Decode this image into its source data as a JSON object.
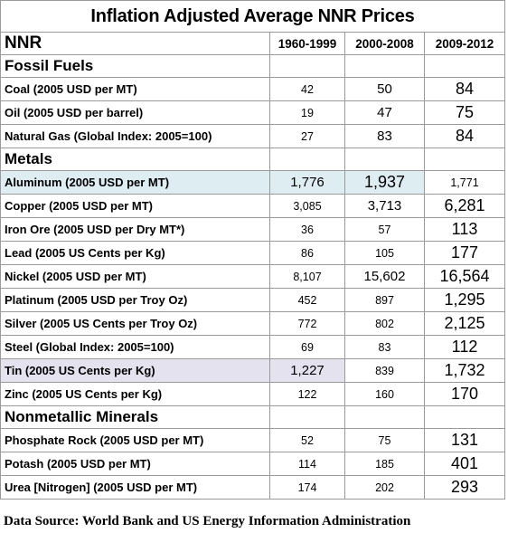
{
  "title": "Inflation Adjusted Average NNR Prices",
  "header": {
    "label": "NNR",
    "periods": [
      "1960-1999",
      "2000-2008",
      "2009-2012"
    ]
  },
  "sections": [
    {
      "name": "Fossil Fuels",
      "rows": [
        {
          "label": "Coal (2005 USD per MT)",
          "values": [
            "42",
            "50",
            "84"
          ]
        },
        {
          "label": "Oil (2005 USD per barrel)",
          "values": [
            "19",
            "47",
            "75"
          ]
        },
        {
          "label": "Natural Gas (Global Index: 2005=100)",
          "values": [
            "27",
            "83",
            "84"
          ]
        }
      ]
    },
    {
      "name": "Metals",
      "rows": [
        {
          "label": "Aluminum (2005 USD per MT)",
          "values": [
            "1,776",
            "1,937",
            "1,771"
          ]
        },
        {
          "label": "Copper (2005 USD per MT)",
          "values": [
            "3,085",
            "3,713",
            "6,281"
          ]
        },
        {
          "label": "Iron Ore (2005 USD per Dry MT*)",
          "values": [
            "36",
            "57",
            "113"
          ]
        },
        {
          "label": "Lead (2005 US Cents per Kg)",
          "values": [
            "86",
            "105",
            "177"
          ]
        },
        {
          "label": "Nickel (2005 USD per MT)",
          "values": [
            "8,107",
            "15,602",
            "16,564"
          ]
        },
        {
          "label": "Platinum (2005 USD per Troy Oz)",
          "values": [
            "452",
            "897",
            "1,295"
          ]
        },
        {
          "label": "Silver (2005 US Cents per Troy Oz)",
          "values": [
            "772",
            "802",
            "2,125"
          ]
        },
        {
          "label": "Steel (Global Index: 2005=100)",
          "values": [
            "69",
            "83",
            "112"
          ]
        },
        {
          "label": "Tin (2005 US Cents per Kg)",
          "values": [
            "1,227",
            "839",
            "1,732"
          ]
        },
        {
          "label": "Zinc (2005 US Cents per Kg)",
          "values": [
            "122",
            "160",
            "170"
          ]
        }
      ]
    },
    {
      "name": "Nonmetallic Minerals",
      "rows": [
        {
          "label": "Phosphate Rock (2005 USD per MT)",
          "values": [
            "52",
            "75",
            "131"
          ]
        },
        {
          "label": "Potash (2005 USD per MT)",
          "values": [
            "114",
            "185",
            "401"
          ]
        },
        {
          "label": "Urea [Nitrogen] (2005 USD per MT)",
          "values": [
            "174",
            "202",
            "293"
          ]
        }
      ]
    }
  ],
  "highlight_colors": {
    "aluminum_row": "#deedf2",
    "tin_row": "#e4e2ef",
    "grid_lines": "#9a9a9a"
  },
  "source": "Data Source: World Bank and US Energy Information Administration"
}
